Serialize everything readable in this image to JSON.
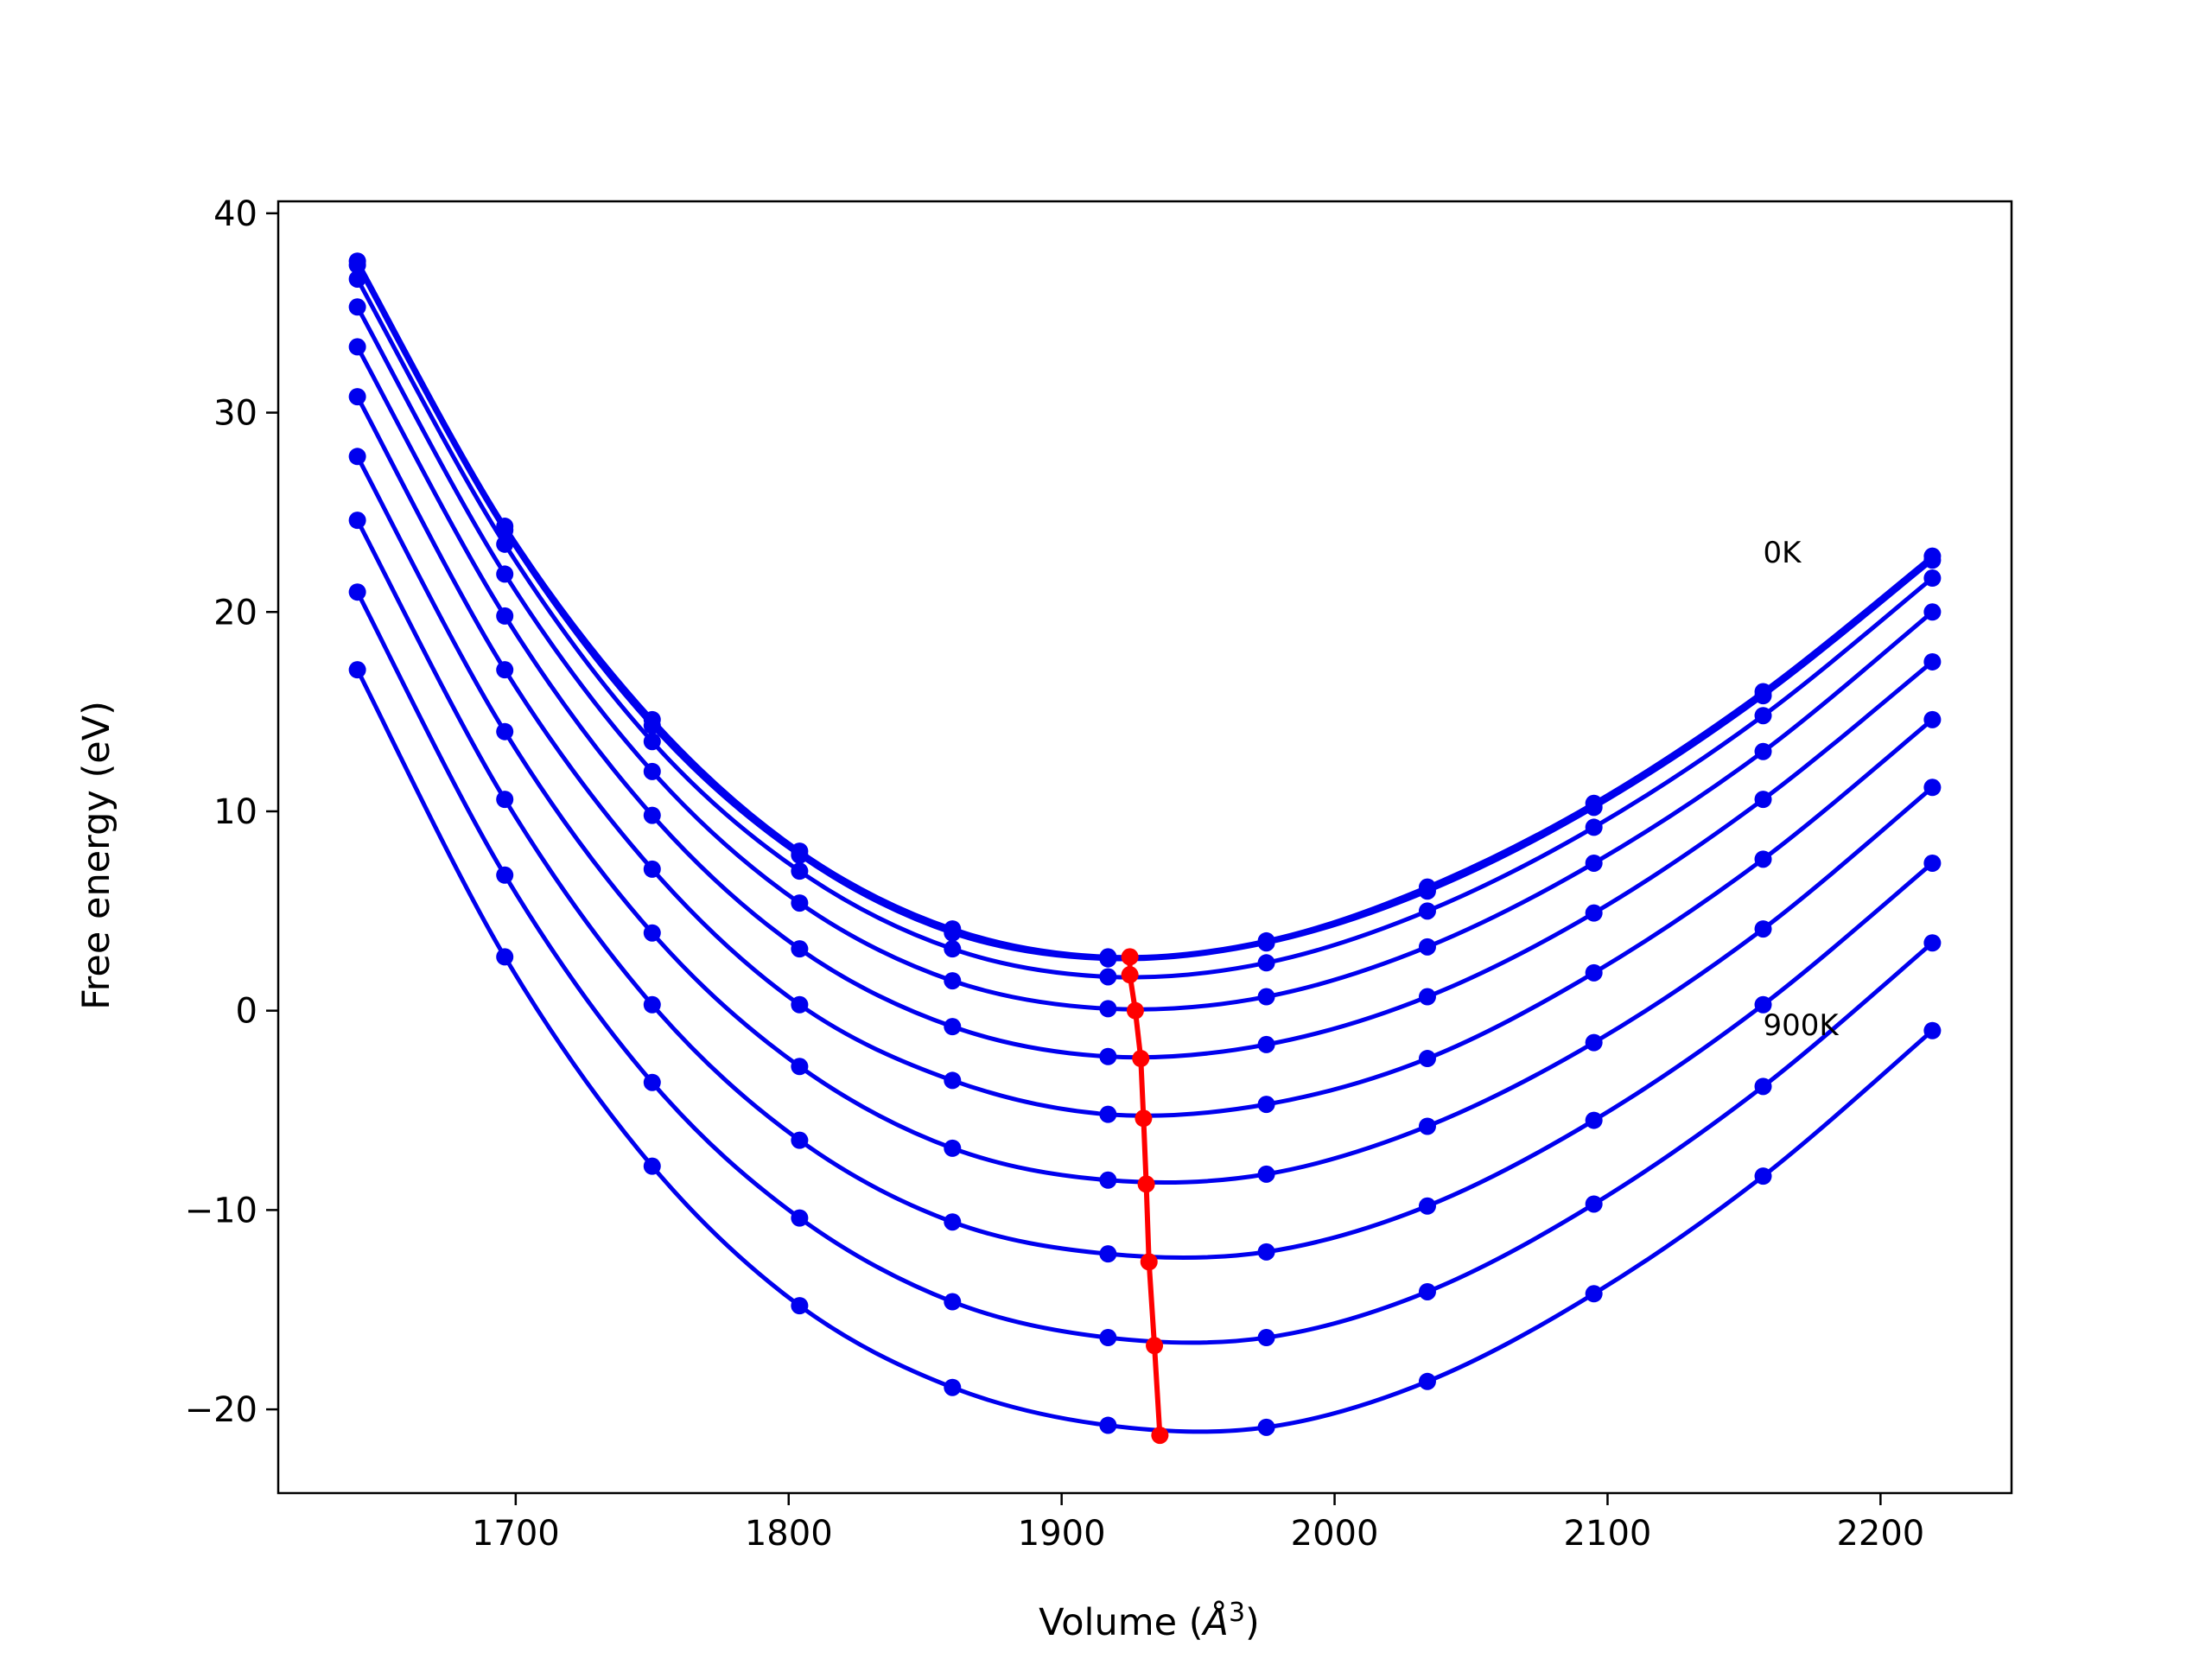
{
  "chart_data": {
    "type": "line",
    "title": "",
    "xlabel_main": "Volume (",
    "xlabel_unit": "Å",
    "xlabel_sup": "3",
    "xlabel_close": ")",
    "ylabel": "Free energy (eV)",
    "xlim": [
      1613,
      2248
    ],
    "ylim": [
      -24.2,
      40.6
    ],
    "xticks": [
      1700,
      1800,
      1900,
      2000,
      2100,
      2200
    ],
    "xtick_labels": [
      "1700",
      "1800",
      "1900",
      "2000",
      "2100",
      "2200"
    ],
    "yticks": [
      40,
      30,
      20,
      10,
      0,
      -10,
      -20
    ],
    "ytick_labels": [
      "40",
      "30",
      "20",
      "10",
      "0",
      "−10",
      "−20"
    ],
    "grid": false,
    "colors": {
      "series": "#0000ee",
      "equilibrium": "#ff0000",
      "axes": "#000000"
    },
    "x": [
      1642,
      1696,
      1750,
      1804,
      1860,
      1917,
      1975,
      2034,
      2095,
      2157,
      2219
    ],
    "series": [
      {
        "values": [
          37.6,
          24.3,
          14.6,
          8.0,
          4.1,
          2.7,
          3.5,
          6.2,
          10.4,
          16.0,
          22.8
        ]
      },
      {
        "values": [
          37.4,
          24.1,
          14.3,
          7.8,
          3.9,
          2.6,
          3.4,
          6.0,
          10.2,
          15.8,
          22.6
        ]
      },
      {
        "values": [
          36.7,
          23.4,
          13.5,
          7.0,
          3.1,
          1.7,
          2.4,
          5.0,
          9.2,
          14.8,
          21.7
        ]
      },
      {
        "values": [
          35.3,
          21.9,
          12.0,
          5.4,
          1.5,
          0.1,
          0.7,
          3.2,
          7.4,
          13.0,
          20.0
        ]
      },
      {
        "values": [
          33.3,
          19.8,
          9.8,
          3.1,
          -0.8,
          -2.3,
          -1.7,
          0.7,
          4.9,
          10.6,
          17.5
        ]
      },
      {
        "values": [
          30.8,
          17.1,
          7.1,
          0.3,
          -3.5,
          -5.2,
          -4.7,
          -2.4,
          1.9,
          7.6,
          14.6
        ]
      },
      {
        "values": [
          27.8,
          14.0,
          3.9,
          -2.8,
          -6.9,
          -8.5,
          -8.2,
          -5.8,
          -1.6,
          4.1,
          11.2
        ]
      },
      {
        "values": [
          24.6,
          10.6,
          0.3,
          -6.5,
          -10.6,
          -12.2,
          -12.1,
          -9.8,
          -5.5,
          0.3,
          7.4
        ]
      },
      {
        "values": [
          21.0,
          6.8,
          -3.6,
          -10.4,
          -14.6,
          -16.4,
          -16.4,
          -14.1,
          -9.7,
          -3.8,
          3.4
        ]
      },
      {
        "values": [
          17.1,
          2.7,
          -7.8,
          -14.8,
          -18.9,
          -20.8,
          -20.9,
          -18.6,
          -14.2,
          -8.3,
          -1.0
        ]
      }
    ],
    "equilibrium": {
      "x": [
        1925,
        1925,
        1927,
        1929,
        1930,
        1931,
        1932,
        1934,
        1936
      ],
      "y": [
        2.7,
        1.8,
        0.0,
        -2.4,
        -5.4,
        -8.7,
        -12.6,
        -16.8,
        -21.3
      ]
    },
    "annotations": [
      {
        "text": "0K",
        "x": 2157,
        "y": 23.0
      },
      {
        "text": "900K",
        "x": 2157,
        "y": -0.7
      }
    ]
  }
}
